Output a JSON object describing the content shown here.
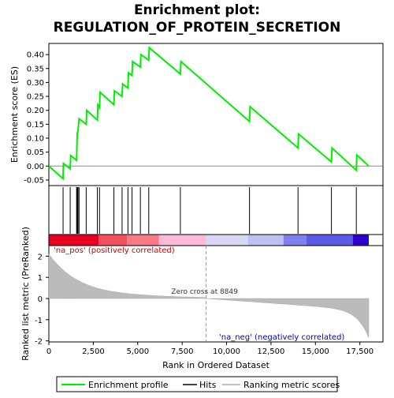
{
  "chart_data": {
    "type": "line",
    "title_line1": "Enrichment plot:",
    "title_line2": "REGULATION_OF_PROTEIN_SECRETION",
    "es_panel": {
      "ylabel": "Enrichment score (ES)",
      "ylim": [
        -0.07,
        0.44
      ],
      "yticks": [
        -0.05,
        0.0,
        0.05,
        0.1,
        0.15,
        0.2,
        0.25,
        0.3,
        0.35,
        0.4
      ],
      "ytick_labels": [
        "-0.05",
        "0.00",
        "0.05",
        "0.10",
        "0.15",
        "0.20",
        "0.25",
        "0.30",
        "0.35",
        "0.40"
      ],
      "series_name": "Enrichment profile",
      "color": "#00ff00",
      "points": [
        [
          0,
          0.0
        ],
        [
          800,
          -0.045
        ],
        [
          820,
          0.01
        ],
        [
          1200,
          -0.01
        ],
        [
          1230,
          0.038
        ],
        [
          1560,
          0.02
        ],
        [
          1580,
          0.07
        ],
        [
          1600,
          0.12
        ],
        [
          1640,
          0.125
        ],
        [
          1700,
          0.17
        ],
        [
          2100,
          0.15
        ],
        [
          2130,
          0.2
        ],
        [
          2730,
          0.165
        ],
        [
          2760,
          0.22
        ],
        [
          2850,
          0.21
        ],
        [
          2880,
          0.265
        ],
        [
          3660,
          0.22
        ],
        [
          3690,
          0.27
        ],
        [
          4120,
          0.25
        ],
        [
          4150,
          0.295
        ],
        [
          4450,
          0.28
        ],
        [
          4480,
          0.335
        ],
        [
          4680,
          0.325
        ],
        [
          4710,
          0.375
        ],
        [
          5150,
          0.355
        ],
        [
          5180,
          0.4
        ],
        [
          5620,
          0.38
        ],
        [
          5650,
          0.425
        ],
        [
          7400,
          0.33
        ],
        [
          7430,
          0.375
        ],
        [
          11290,
          0.16
        ],
        [
          11320,
          0.213
        ],
        [
          14020,
          0.065
        ],
        [
          14050,
          0.115
        ],
        [
          15900,
          0.015
        ],
        [
          15930,
          0.065
        ],
        [
          17300,
          -0.015
        ],
        [
          17330,
          0.04
        ],
        [
          18000,
          0.0
        ]
      ]
    },
    "hits": [
      800,
      1200,
      1560,
      1600,
      1640,
      1700,
      2100,
      2730,
      2850,
      3660,
      4120,
      4450,
      4680,
      5150,
      5620,
      7400,
      11290,
      14020,
      15900,
      17300
    ],
    "ranked_panel": {
      "ylabel": "Ranked list metric (PreRanked)",
      "xlabel": "Rank in Ordered Dataset",
      "ylim": [
        -2.05,
        2.5
      ],
      "yticks": [
        -2,
        -1,
        0,
        1,
        2
      ],
      "ytick_labels": [
        "-2",
        "-1",
        "0",
        "1",
        "2"
      ],
      "series_name": "Ranking metric scores",
      "zero_cross_label": "Zero cross at 8849",
      "zero_cross": 8849,
      "pos_label": "'na_pos' (positively correlated)",
      "neg_label": "'na_neg' (negatively correlated)",
      "pos_color": "#cc0000",
      "neg_color": "#0000cc",
      "fill_color": "#bbbbbb"
    },
    "xaxis": {
      "xlim": [
        0,
        18800
      ],
      "xticks": [
        0,
        2500,
        5000,
        7500,
        10000,
        12500,
        15000,
        17500
      ],
      "xtick_labels": [
        "0",
        "2,500",
        "5,000",
        "7,500",
        "10,000",
        "12,500",
        "15,000",
        "17,500"
      ],
      "n_genes": 18000
    },
    "heat_bar_colors": [
      "#e8001e",
      "#f25060",
      "#f77a85",
      "#fbbad8",
      "#d8d8f5",
      "#c0c0f0",
      "#8080ee",
      "#5a5ae6",
      "#3000cc"
    ],
    "heat_bar_stops": [
      0,
      2800,
      4400,
      6200,
      8849,
      11200,
      13200,
      14500,
      17100,
      18000
    ],
    "legend": {
      "items": [
        "Enrichment profile",
        "Hits",
        "Ranking metric scores"
      ],
      "colors": [
        "#00ff00",
        "#000000",
        "#c0c0c0"
      ]
    }
  }
}
